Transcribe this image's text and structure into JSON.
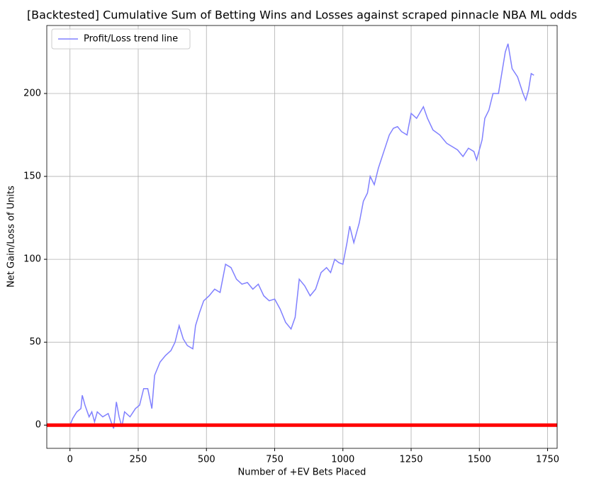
{
  "chart_data": {
    "type": "line",
    "title": "[Backtested] Cumulative Sum of Betting Wins and Losses against scraped pinnacle NBA ML odds",
    "x_label": "Number of +EV Bets Placed",
    "y_label": "Net Gain/Loss of Units",
    "x": [
      0,
      10,
      25,
      40,
      45,
      55,
      70,
      80,
      90,
      100,
      120,
      140,
      155,
      160,
      170,
      180,
      190,
      200,
      220,
      240,
      255,
      270,
      285,
      300,
      310,
      330,
      350,
      370,
      385,
      400,
      415,
      430,
      450,
      460,
      475,
      490,
      510,
      530,
      550,
      570,
      590,
      610,
      630,
      650,
      670,
      690,
      710,
      730,
      750,
      770,
      790,
      810,
      825,
      840,
      860,
      880,
      900,
      920,
      940,
      955,
      970,
      985,
      1000,
      1015,
      1025,
      1040,
      1060,
      1075,
      1090,
      1100,
      1115,
      1130,
      1150,
      1170,
      1185,
      1200,
      1215,
      1235,
      1250,
      1270,
      1295,
      1310,
      1330,
      1355,
      1380,
      1400,
      1420,
      1440,
      1460,
      1480,
      1490,
      1510,
      1520,
      1535,
      1550,
      1570,
      1580,
      1595,
      1605,
      1620,
      1640,
      1660,
      1670,
      1680,
      1690,
      1700
    ],
    "series": [
      {
        "name": "Profit/Loss trend line",
        "color": "#8080ff",
        "values": [
          0,
          4,
          8,
          10,
          18,
          12,
          5,
          8,
          2,
          8,
          5,
          7,
          0,
          -2,
          14,
          5,
          -1,
          8,
          5,
          10,
          12,
          22,
          22,
          10,
          30,
          38,
          42,
          45,
          50,
          60,
          52,
          48,
          46,
          60,
          68,
          75,
          78,
          82,
          80,
          97,
          95,
          88,
          85,
          86,
          82,
          85,
          78,
          75,
          76,
          70,
          62,
          58,
          65,
          88,
          84,
          78,
          82,
          92,
          95,
          92,
          100,
          98,
          97,
          110,
          120,
          110,
          122,
          135,
          140,
          150,
          145,
          155,
          165,
          175,
          179,
          180,
          177,
          175,
          188,
          185,
          192,
          185,
          178,
          175,
          170,
          168,
          166,
          162,
          167,
          165,
          160,
          172,
          185,
          190,
          200,
          200,
          210,
          225,
          230,
          215,
          210,
          200,
          196,
          202,
          212,
          211
        ]
      }
    ],
    "reference_line": {
      "value": 0,
      "color": "#ff0000"
    },
    "xlim": [
      -85,
      1785
    ],
    "xticks": [
      0,
      250,
      500,
      750,
      1000,
      1250,
      1500,
      1750
    ],
    "ylim": [
      -14,
      241
    ],
    "yticks": [
      0,
      50,
      100,
      150,
      200
    ],
    "grid": true,
    "legend": "upper-left"
  }
}
